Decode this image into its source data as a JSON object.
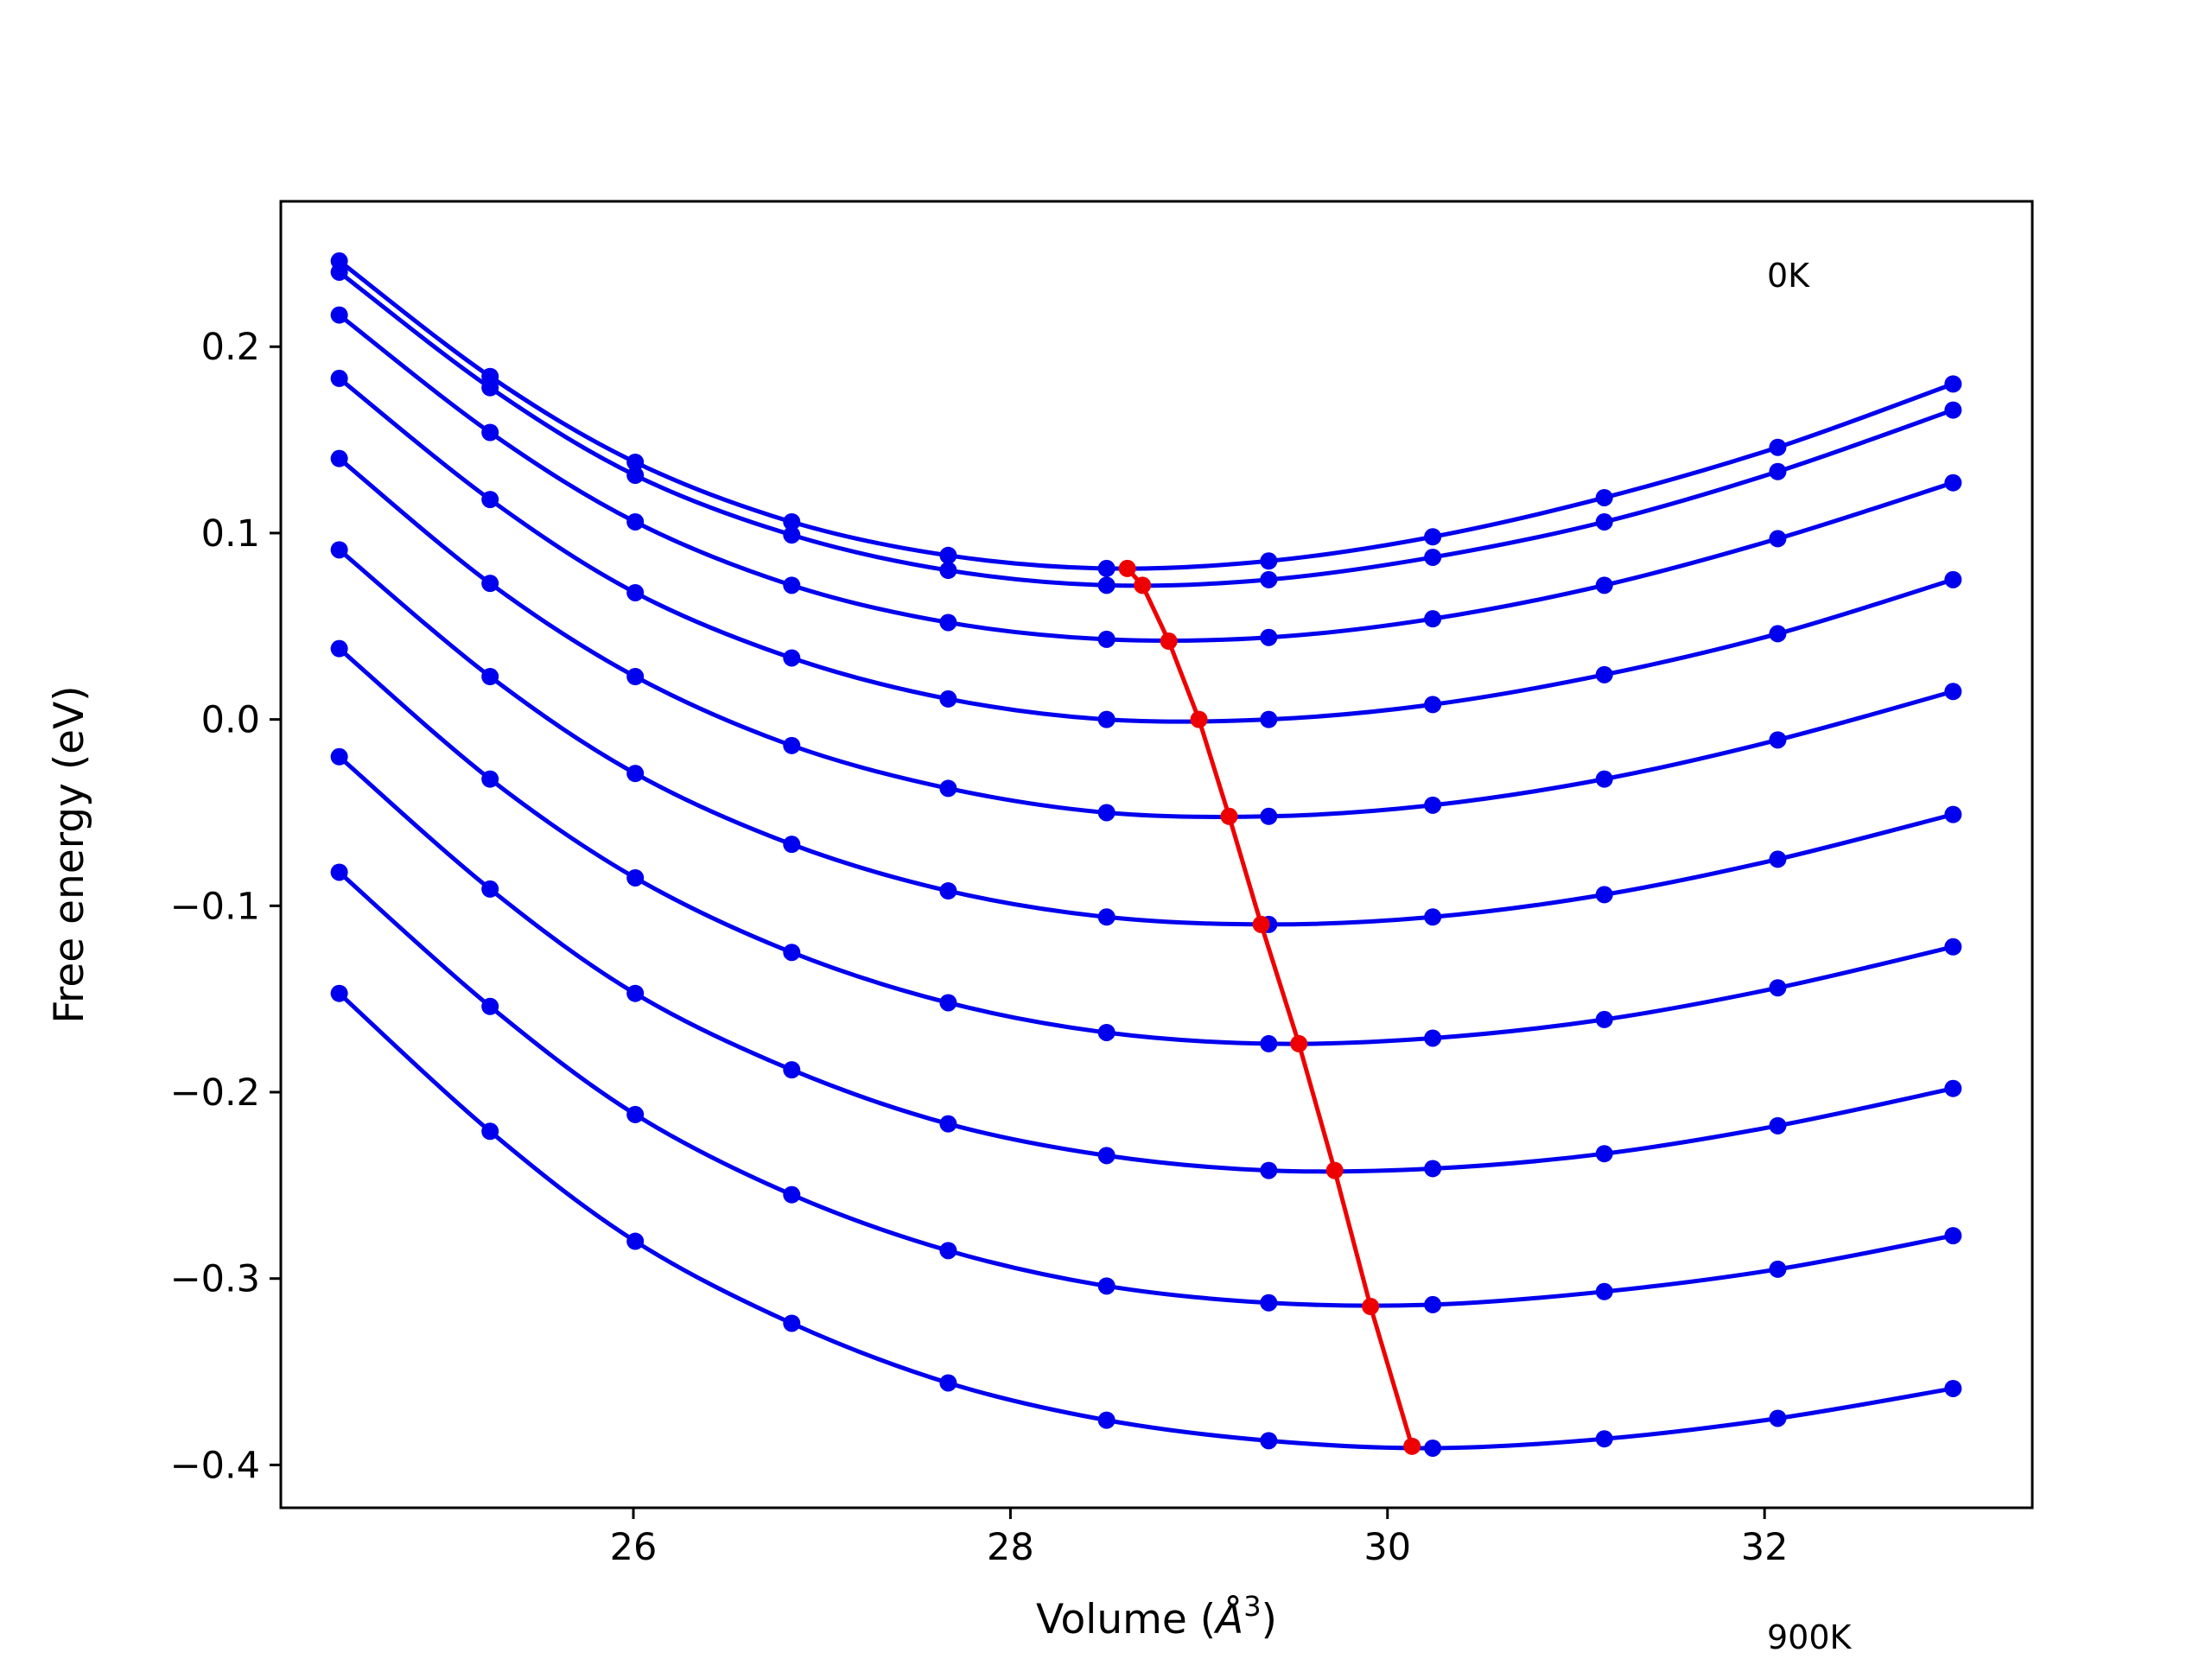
{
  "chart_data": {
    "type": "line",
    "title": "",
    "xlabel_main": "Volume (",
    "xlabel_unit": "Å",
    "xlabel_exp": "3",
    "xlabel_close": ")",
    "ylabel": "Free energy (eV)",
    "xlim": [
      24.13,
      33.42
    ],
    "ylim": [
      -0.423,
      0.278
    ],
    "x_ticks": [
      26,
      28,
      30,
      32
    ],
    "x_tick_labels": [
      "26",
      "28",
      "30",
      "32"
    ],
    "y_ticks": [
      0.2,
      0.1,
      0.0,
      -0.1,
      -0.2,
      -0.3,
      -0.4
    ],
    "y_tick_labels": [
      "0.2",
      "0.1",
      "0.0",
      "−0.1",
      "−0.2",
      "−0.3",
      "−0.4"
    ],
    "grid": false,
    "annotations": {
      "top": "0K",
      "bottom": "900K"
    },
    "colors": {
      "curves": "#0000ee",
      "minimum_path": "#ee0000",
      "axes": "#000000"
    },
    "x": [
      24.44,
      25.24,
      26.01,
      26.84,
      27.67,
      28.51,
      29.37,
      30.24,
      31.15,
      32.07,
      33.0
    ],
    "series": [
      {
        "values": [
          0.246,
          0.184,
          0.138,
          0.106,
          0.088,
          0.081,
          0.085,
          0.098,
          0.119,
          0.146,
          0.18
        ]
      },
      {
        "values": [
          0.24,
          0.178,
          0.131,
          0.099,
          0.08,
          0.072,
          0.075,
          0.087,
          0.106,
          0.133,
          0.166
        ]
      },
      {
        "values": [
          0.217,
          0.154,
          0.106,
          0.072,
          0.052,
          0.043,
          0.044,
          0.054,
          0.072,
          0.097,
          0.127
        ]
      },
      {
        "values": [
          0.183,
          0.118,
          0.068,
          0.033,
          0.011,
          0.0,
          0.0,
          0.008,
          0.024,
          0.046,
          0.075
        ]
      },
      {
        "values": [
          0.14,
          0.073,
          0.023,
          -0.014,
          -0.037,
          -0.05,
          -0.052,
          -0.046,
          -0.032,
          -0.011,
          0.015
        ]
      },
      {
        "values": [
          0.091,
          0.023,
          -0.029,
          -0.067,
          -0.092,
          -0.106,
          -0.11,
          -0.106,
          -0.094,
          -0.075,
          -0.051
        ]
      },
      {
        "values": [
          0.038,
          -0.032,
          -0.085,
          -0.125,
          -0.152,
          -0.168,
          -0.174,
          -0.171,
          -0.161,
          -0.144,
          -0.122
        ]
      },
      {
        "values": [
          -0.02,
          -0.091,
          -0.147,
          -0.188,
          -0.217,
          -0.234,
          -0.242,
          -0.241,
          -0.233,
          -0.218,
          -0.198
        ]
      },
      {
        "values": [
          -0.082,
          -0.154,
          -0.212,
          -0.255,
          -0.285,
          -0.304,
          -0.313,
          -0.314,
          -0.307,
          -0.295,
          -0.277
        ]
      },
      {
        "values": [
          -0.147,
          -0.221,
          -0.28,
          -0.324,
          -0.356,
          -0.376,
          -0.387,
          -0.391,
          -0.386,
          -0.375,
          -0.359
        ]
      }
    ],
    "minimum_path": {
      "x": [
        28.62,
        28.7,
        28.84,
        29.0,
        29.16,
        29.33,
        29.53,
        29.72,
        29.91,
        30.13
      ],
      "y": [
        0.081,
        0.072,
        0.042,
        0.0,
        -0.052,
        -0.11,
        -0.174,
        -0.242,
        -0.315,
        -0.39
      ]
    }
  }
}
